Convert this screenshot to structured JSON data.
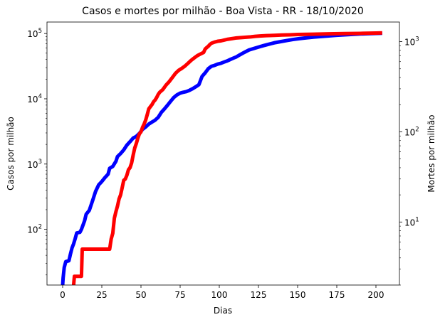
{
  "chart_data": {
    "type": "line",
    "title": "Casos e mortes por milhão - Boa Vista - RR - 18/10/2020",
    "xlabel": "Dias",
    "xlim": [
      -10,
      215
    ],
    "x_ticks": [
      0,
      25,
      50,
      75,
      100,
      125,
      150,
      175,
      200
    ],
    "grid": false,
    "y_left": {
      "label": "Casos por milhão",
      "color": "#0000ff",
      "scale": "log",
      "lim": [
        14,
        150000
      ],
      "major_ticks": [
        {
          "value": 100,
          "base": "10",
          "exp": "2"
        },
        {
          "value": 1000,
          "base": "10",
          "exp": "3"
        },
        {
          "value": 10000,
          "base": "10",
          "exp": "4"
        },
        {
          "value": 100000,
          "base": "10",
          "exp": "5"
        }
      ]
    },
    "y_right": {
      "label": "Mortes por milhão",
      "color": "#ff0000",
      "scale": "log",
      "lim": [
        2.0,
        1650
      ],
      "major_ticks": [
        {
          "value": 10,
          "base": "10",
          "exp": "1"
        },
        {
          "value": 100,
          "base": "10",
          "exp": "2"
        },
        {
          "value": 1000,
          "base": "10",
          "exp": "3"
        }
      ]
    },
    "series": [
      {
        "axis": "left",
        "color": "#0000ff",
        "points": [
          [
            0,
            14
          ],
          [
            0.3,
            18
          ],
          [
            1,
            26
          ],
          [
            2,
            32
          ],
          [
            4,
            33
          ],
          [
            5,
            42
          ],
          [
            6,
            52
          ],
          [
            7,
            60
          ],
          [
            8,
            72
          ],
          [
            9,
            88
          ],
          [
            11,
            90
          ],
          [
            12,
            100
          ],
          [
            14,
            135
          ],
          [
            15,
            170
          ],
          [
            17,
            195
          ],
          [
            19,
            270
          ],
          [
            21,
            380
          ],
          [
            23,
            480
          ],
          [
            25,
            540
          ],
          [
            27,
            620
          ],
          [
            29,
            700
          ],
          [
            30,
            860
          ],
          [
            32,
            920
          ],
          [
            34,
            1100
          ],
          [
            35,
            1300
          ],
          [
            37,
            1450
          ],
          [
            39,
            1650
          ],
          [
            41,
            1950
          ],
          [
            43,
            2200
          ],
          [
            45,
            2500
          ],
          [
            47,
            2650
          ],
          [
            49,
            2950
          ],
          [
            51,
            3400
          ],
          [
            53,
            3700
          ],
          [
            55,
            4100
          ],
          [
            57,
            4400
          ],
          [
            59,
            4700
          ],
          [
            61,
            5200
          ],
          [
            63,
            6200
          ],
          [
            65,
            7000
          ],
          [
            67,
            8000
          ],
          [
            69,
            9200
          ],
          [
            71,
            10500
          ],
          [
            73,
            11500
          ],
          [
            75,
            12200
          ],
          [
            77,
            12600
          ],
          [
            79,
            12900
          ],
          [
            81,
            13500
          ],
          [
            83,
            14300
          ],
          [
            85,
            15300
          ],
          [
            87,
            16500
          ],
          [
            89,
            22000
          ],
          [
            91,
            25000
          ],
          [
            93,
            29000
          ],
          [
            95,
            31500
          ],
          [
            97,
            32500
          ],
          [
            99,
            34000
          ],
          [
            101,
            35000
          ],
          [
            103,
            36500
          ],
          [
            105,
            38000
          ],
          [
            107,
            40000
          ],
          [
            109,
            42000
          ],
          [
            111,
            44000
          ],
          [
            113,
            47000
          ],
          [
            115,
            50000
          ],
          [
            117,
            53000
          ],
          [
            119,
            56000
          ],
          [
            122,
            59000
          ],
          [
            125,
            62000
          ],
          [
            128,
            65000
          ],
          [
            131,
            68000
          ],
          [
            135,
            72000
          ],
          [
            139,
            75000
          ],
          [
            143,
            78000
          ],
          [
            147,
            81000
          ],
          [
            151,
            83500
          ],
          [
            155,
            85500
          ],
          [
            160,
            88000
          ],
          [
            165,
            90000
          ],
          [
            170,
            92000
          ],
          [
            175,
            94000
          ],
          [
            180,
            95500
          ],
          [
            185,
            97000
          ],
          [
            190,
            98500
          ],
          [
            195,
            99500
          ],
          [
            200,
            100500
          ],
          [
            204,
            101000
          ]
        ]
      },
      {
        "axis": "right",
        "color": "#ff0000",
        "points": [
          [
            7,
            2.0
          ],
          [
            7.5,
            2.5
          ],
          [
            12,
            2.5
          ],
          [
            12.5,
            5.0
          ],
          [
            30,
            5.0
          ],
          [
            31,
            6.5
          ],
          [
            32,
            7.5
          ],
          [
            33,
            11
          ],
          [
            34,
            13
          ],
          [
            35,
            15
          ],
          [
            36,
            18
          ],
          [
            37,
            20
          ],
          [
            38,
            24
          ],
          [
            39,
            29
          ],
          [
            40,
            30
          ],
          [
            41,
            33
          ],
          [
            42,
            38
          ],
          [
            43,
            40
          ],
          [
            44,
            45
          ],
          [
            45,
            55
          ],
          [
            46,
            66
          ],
          [
            47,
            74
          ],
          [
            48,
            85
          ],
          [
            49,
            95
          ],
          [
            50,
            100
          ],
          [
            51,
            112
          ],
          [
            52,
            122
          ],
          [
            53,
            135
          ],
          [
            54,
            155
          ],
          [
            55,
            180
          ],
          [
            56,
            190
          ],
          [
            57,
            200
          ],
          [
            58,
            215
          ],
          [
            59,
            225
          ],
          [
            60,
            240
          ],
          [
            61,
            260
          ],
          [
            62,
            275
          ],
          [
            64,
            295
          ],
          [
            66,
            330
          ],
          [
            68,
            360
          ],
          [
            70,
            400
          ],
          [
            72,
            445
          ],
          [
            74,
            480
          ],
          [
            76,
            505
          ],
          [
            78,
            535
          ],
          [
            80,
            575
          ],
          [
            82,
            620
          ],
          [
            84,
            660
          ],
          [
            86,
            700
          ],
          [
            88,
            730
          ],
          [
            90,
            760
          ],
          [
            91,
            830
          ],
          [
            92,
            860
          ],
          [
            93,
            890
          ],
          [
            94,
            930
          ],
          [
            95,
            960
          ],
          [
            97,
            990
          ],
          [
            99,
            1010
          ],
          [
            101,
            1020
          ],
          [
            103,
            1040
          ],
          [
            105,
            1060
          ],
          [
            108,
            1080
          ],
          [
            111,
            1100
          ],
          [
            114,
            1110
          ],
          [
            117,
            1120
          ],
          [
            120,
            1130
          ],
          [
            123,
            1145
          ],
          [
            126,
            1155
          ],
          [
            130,
            1165
          ],
          [
            135,
            1175
          ],
          [
            140,
            1185
          ],
          [
            145,
            1190
          ],
          [
            150,
            1200
          ],
          [
            160,
            1210
          ],
          [
            170,
            1220
          ],
          [
            180,
            1230
          ],
          [
            190,
            1235
          ],
          [
            200,
            1245
          ],
          [
            204,
            1250
          ]
        ]
      }
    ]
  }
}
